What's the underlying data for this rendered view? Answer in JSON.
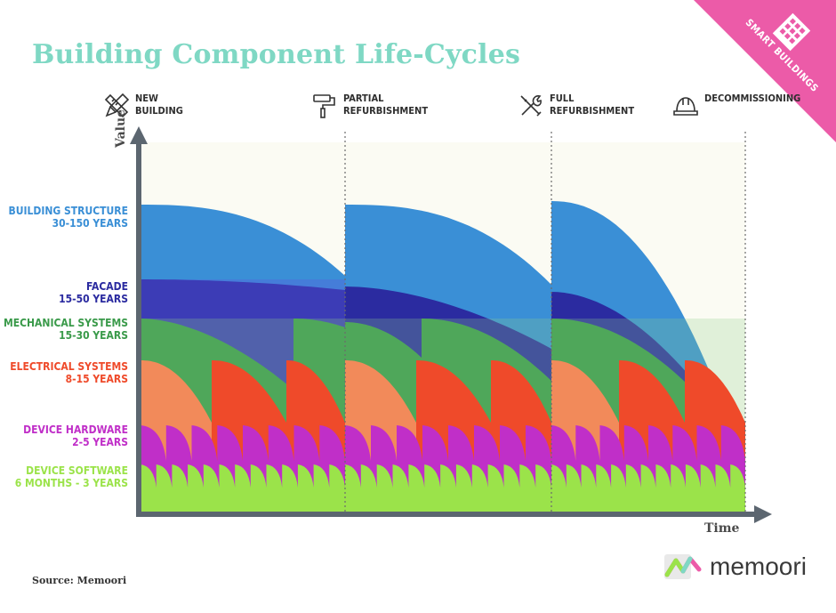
{
  "title": "Building Component Life-Cycles",
  "badge": {
    "label": "SMART BUILDINGS"
  },
  "phases": [
    {
      "label": "NEW\nBUILDING",
      "icon": "pencil-ruler-icon"
    },
    {
      "label": "PARTIAL\nREFURBISHMENT",
      "icon": "paint-roller-icon"
    },
    {
      "label": "FULL\nREFURBISHMENT",
      "icon": "wrench-screwdriver-icon"
    },
    {
      "label": "DECOMMISSIONING",
      "icon": "hard-hat-icon"
    }
  ],
  "axes": {
    "y_label": "Value",
    "x_label": "Time"
  },
  "colors": {
    "structure": "#3a8fd6",
    "facade": "#2b2ba0",
    "mechanical": "#3a9a4a",
    "electrical": "#ef4a2a",
    "device_hardware": "#c02fc8",
    "device_software": "#9be34a",
    "title": "#7fd8c4",
    "badge": "#ec5ba8",
    "axis": "#5c6670"
  },
  "chart_data": {
    "type": "area",
    "title": "Building Component Life-Cycles",
    "xlabel": "Time",
    "ylabel": "Value",
    "phase_markers": [
      "NEW BUILDING",
      "PARTIAL REFURBISHMENT",
      "FULL REFURBISHMENT",
      "DECOMMISSIONING"
    ],
    "series": [
      {
        "name": "BUILDING STRUCTURE",
        "lifespan": "30-150 YEARS"
      },
      {
        "name": "FACADE",
        "lifespan": "15-50 YEARS"
      },
      {
        "name": "MECHANICAL SYSTEMS",
        "lifespan": "15-30 YEARS"
      },
      {
        "name": "ELECTRICAL SYSTEMS",
        "lifespan": "8-15 YEARS"
      },
      {
        "name": "DEVICE HARDWARE",
        "lifespan": "2-5 YEARS"
      },
      {
        "name": "DEVICE SOFTWARE",
        "lifespan": "6 MONTHS - 3 YEARS"
      }
    ]
  },
  "source": "Source: Memoori",
  "logo": {
    "text": "memoori"
  }
}
